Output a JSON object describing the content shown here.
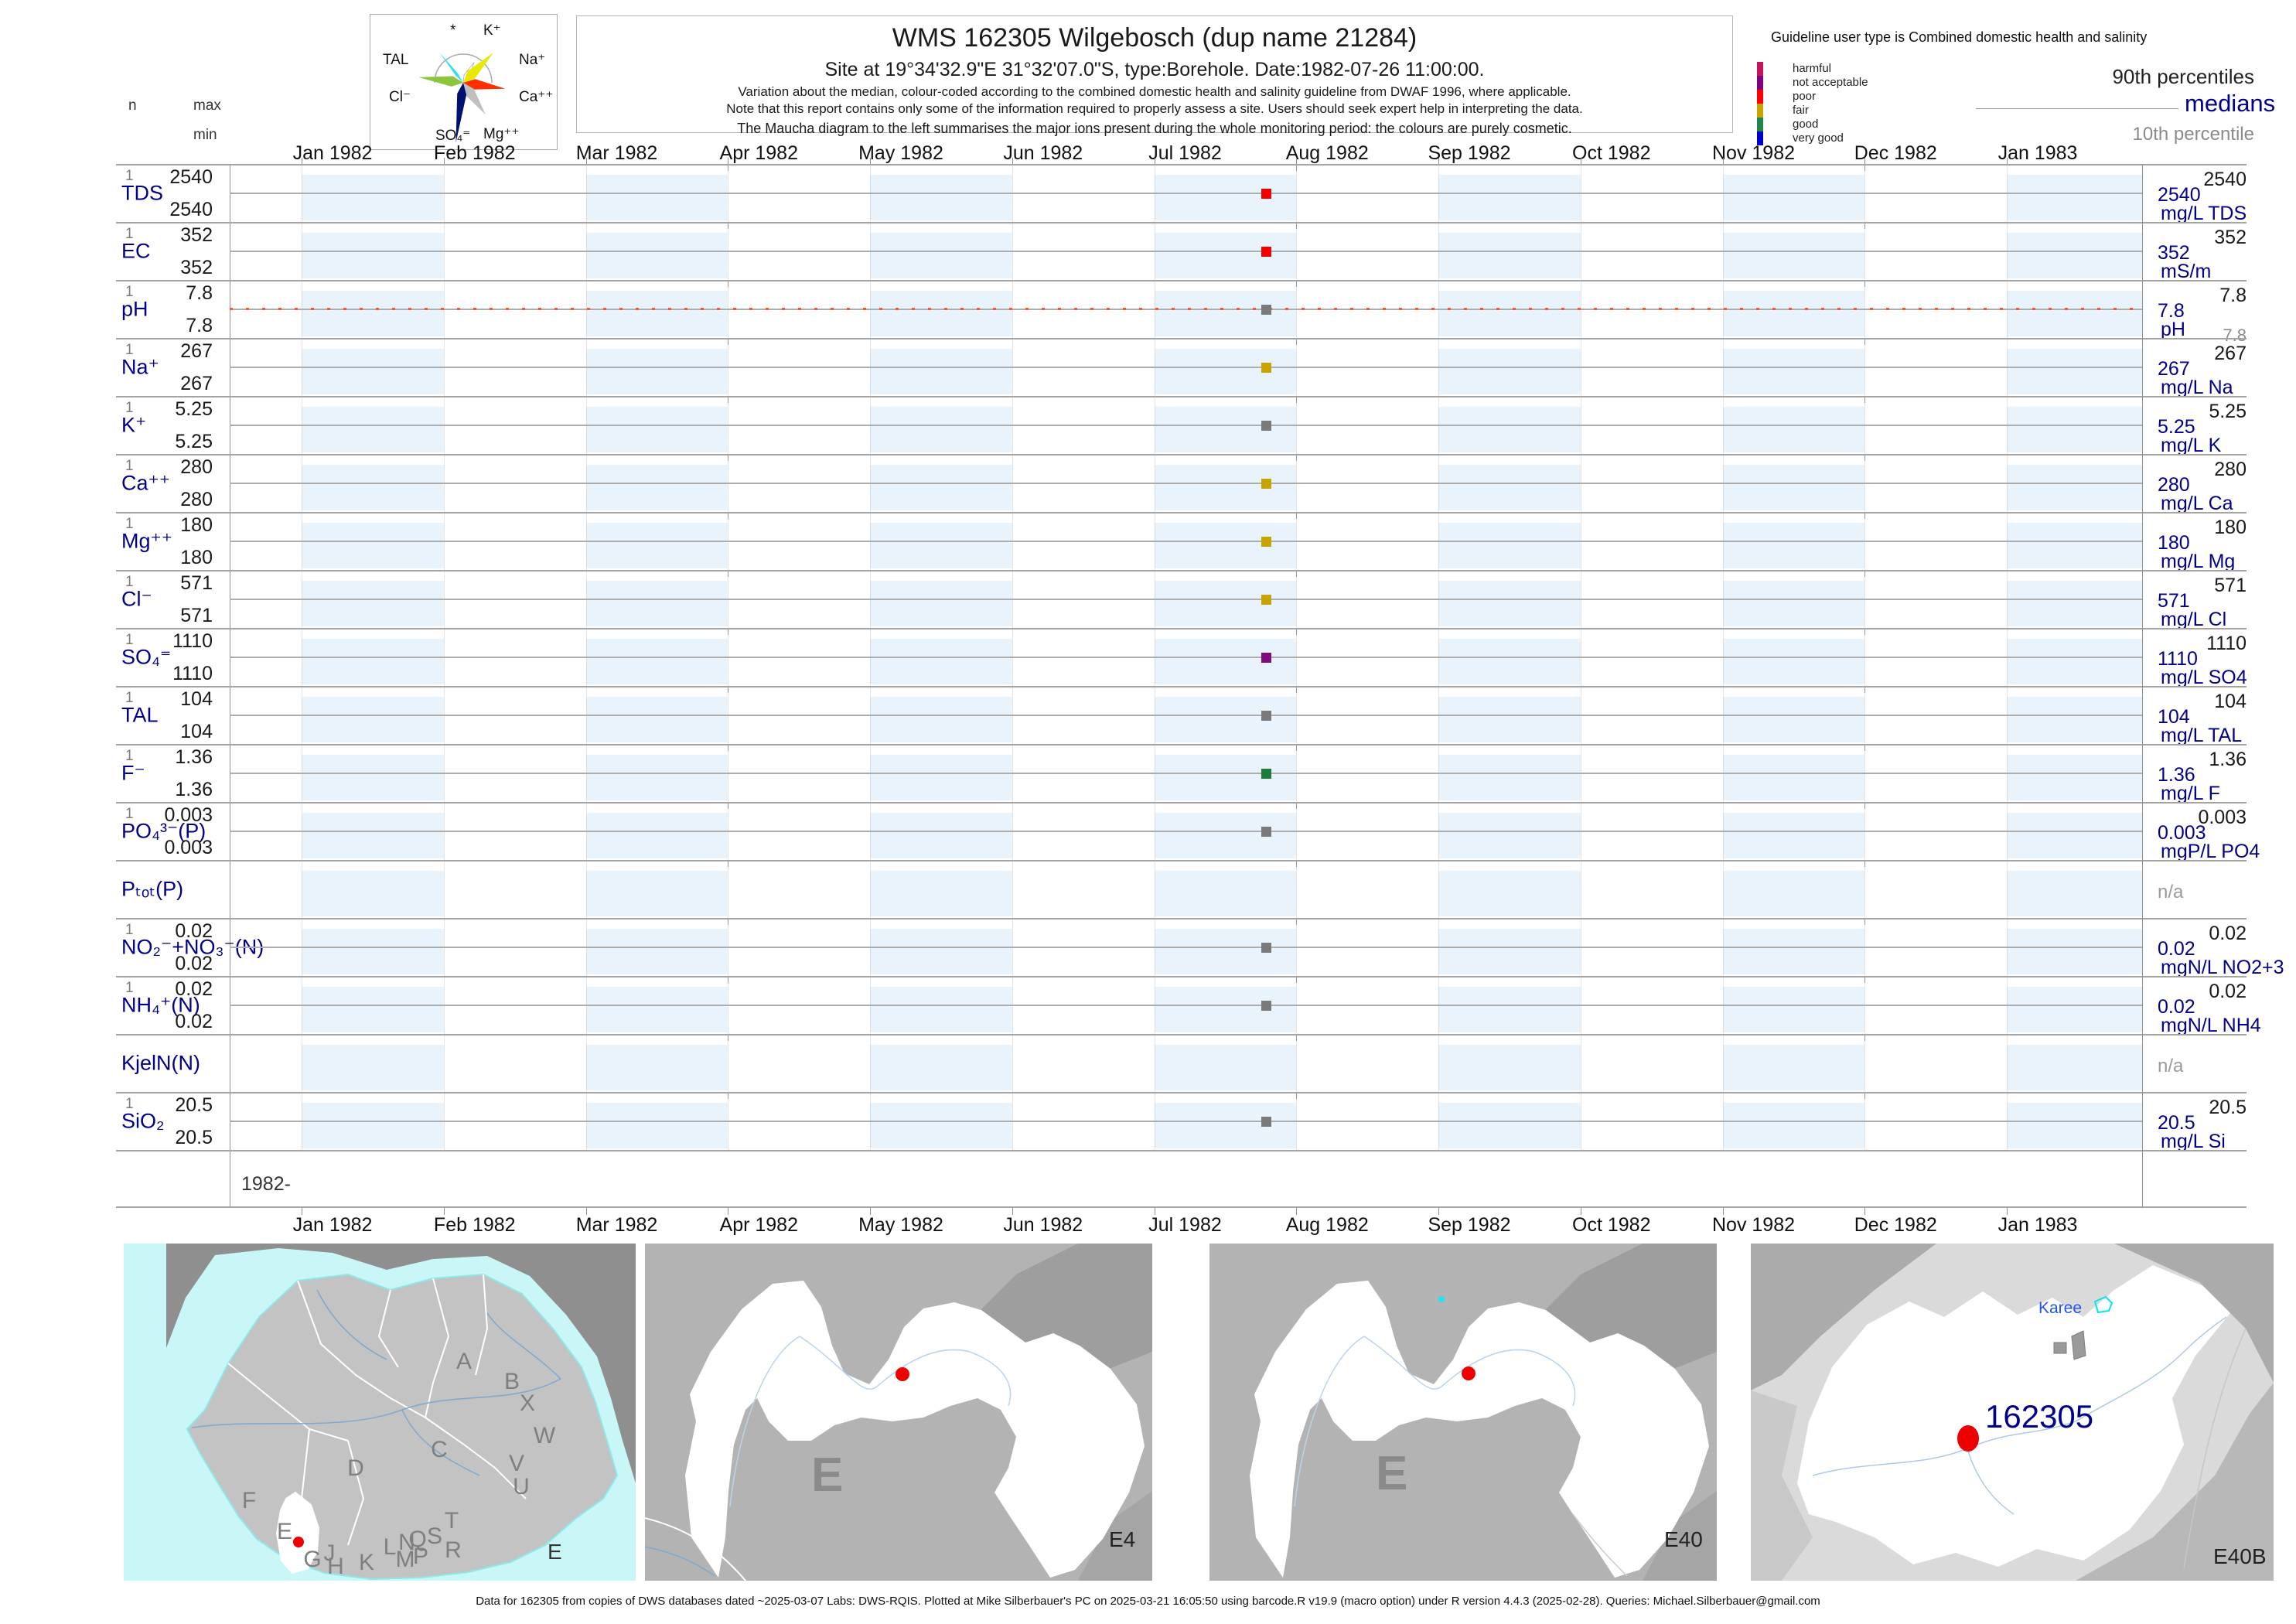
{
  "header": {
    "stats_legend": {
      "n": "n",
      "max": "max",
      "min": "min"
    },
    "maucha_labels": {
      "star": "*",
      "k": "K⁺",
      "na": "Na⁺",
      "ca": "Ca⁺⁺",
      "mg": "Mg⁺⁺",
      "so4": "SO₄⁼",
      "cl": "Cl⁻",
      "tal": "TAL"
    },
    "title": "WMS 162305  Wilgebosch (dup name 21284)",
    "subtitle": "Site at 19°34'32.9\"E 31°32'07.0\"S, type:Borehole. Date:1982-07-26 11:00:00.",
    "note1": "Variation about the median,  colour-coded according to the combined domestic health and salinity guideline from DWAF 1996, where applicable.",
    "note2": "Note that this report contains only some of the information required to properly assess a site. Users should seek expert help in interpreting the data.",
    "note3": "The Maucha diagram to the left summarises the major ions present during the whole monitoring period: the colours are purely cosmetic.",
    "guideline": {
      "title": "Guideline user type is Combined domestic health and salinity",
      "classes": [
        {
          "label": "harmful",
          "color": "#C4145A"
        },
        {
          "label": "not acceptable",
          "color": "#800080"
        },
        {
          "label": "poor",
          "color": "#FF0000"
        },
        {
          "label": "fair",
          "color": "#C8A400"
        },
        {
          "label": "good",
          "color": "#1E8449"
        },
        {
          "label": "very good",
          "color": "#0000CC"
        }
      ],
      "p90_label": "90th percentiles",
      "median_label": "medians",
      "p10_label": "10th percentile"
    }
  },
  "axis": {
    "months": [
      "Jan 1982",
      "Feb 1982",
      "Mar 1982",
      "Apr 1982",
      "May 1982",
      "Jun 1982",
      "Jul 1982",
      "Aug 1982",
      "Sep 1982",
      "Oct 1982",
      "Nov 1982",
      "Dec 1982",
      "Jan 1983"
    ],
    "year_row_label": "1982-"
  },
  "rows": [
    {
      "param": "TDS",
      "n": "1",
      "max": "2540",
      "min": "2540",
      "p90": "2540",
      "median": "2540",
      "unit": "mg/L TDS",
      "point_color": "#F00000"
    },
    {
      "param": "EC",
      "n": "1",
      "max": "352",
      "min": "352",
      "p90": "352",
      "median": "352",
      "unit": "mS/m",
      "point_color": "#F00000"
    },
    {
      "param": "pH",
      "n": "1",
      "max": "7.8",
      "min": "7.8",
      "p90": "7.8",
      "median": "7.8",
      "unit": "pH",
      "p10": "7.8",
      "point_color": "#7A7A7A",
      "guideline_line": true
    },
    {
      "param": "Na⁺",
      "n": "1",
      "max": "267",
      "min": "267",
      "p90": "267",
      "median": "267",
      "unit": "mg/L Na",
      "point_color": "#C8A400"
    },
    {
      "param": "K⁺",
      "n": "1",
      "max": "5.25",
      "min": "5.25",
      "p90": "5.25",
      "median": "5.25",
      "unit": "mg/L K",
      "point_color": "#7A7A7A"
    },
    {
      "param": "Ca⁺⁺",
      "n": "1",
      "max": "280",
      "min": "280",
      "p90": "280",
      "median": "280",
      "unit": "mg/L Ca",
      "point_color": "#C8A400"
    },
    {
      "param": "Mg⁺⁺",
      "n": "1",
      "max": "180",
      "min": "180",
      "p90": "180",
      "median": "180",
      "unit": "mg/L Mg",
      "point_color": "#C8A400"
    },
    {
      "param": "Cl⁻",
      "n": "1",
      "max": "571",
      "min": "571",
      "p90": "571",
      "median": "571",
      "unit": "mg/L Cl",
      "point_color": "#C8A400"
    },
    {
      "param": "SO₄⁼",
      "n": "1",
      "max": "1110",
      "min": "1110",
      "p90": "1110",
      "median": "1110",
      "unit": "mg/L SO4",
      "point_color": "#7D0D7D"
    },
    {
      "param": "TAL",
      "n": "1",
      "max": "104",
      "min": "104",
      "p90": "104",
      "median": "104",
      "unit": "mg/L TAL",
      "point_color": "#7A7A7A"
    },
    {
      "param": "F⁻",
      "n": "1",
      "max": "1.36",
      "min": "1.36",
      "p90": "1.36",
      "median": "1.36",
      "unit": "mg/L F",
      "point_color": "#1E7B3C"
    },
    {
      "param": "PO₄³⁻(P)",
      "n": "1",
      "max": "0.003",
      "min": "0.003",
      "p90": "0.003",
      "median": "0.003",
      "unit": "mgP/L PO4",
      "point_color": "#7A7A7A"
    },
    {
      "param": "Pₜₒₜ(P)",
      "na": "n/a"
    },
    {
      "param": "NO₂⁻+NO₃⁻(N)",
      "n": "1",
      "max": "0.02",
      "min": "0.02",
      "p90": "0.02",
      "median": "0.02",
      "unit": "mgN/L NO2+3",
      "point_color": "#7A7A7A"
    },
    {
      "param": "NH₄⁺(N)",
      "n": "1",
      "max": "0.02",
      "min": "0.02",
      "p90": "0.02",
      "median": "0.02",
      "unit": "mgN/L NH4",
      "point_color": "#7A7A7A"
    },
    {
      "param": "KjelN(N)",
      "na": "n/a"
    },
    {
      "param": "SiO₂",
      "n": "1",
      "max": "20.5",
      "min": "20.5",
      "p90": "20.5",
      "median": "20.5",
      "unit": "mg/L Si",
      "point_color": "#7A7A7A"
    }
  ],
  "maps": {
    "overview": {
      "corner_label": "E",
      "region_letters": [
        "A",
        "B",
        "X",
        "C",
        "W",
        "V",
        "U",
        "D",
        "F",
        "E",
        "T",
        "S",
        "Q",
        "R",
        "N",
        "L",
        "P",
        "M",
        "J",
        "K",
        "G",
        "H"
      ]
    },
    "e4": {
      "center_letter": "E",
      "corner_label": "E4"
    },
    "e40": {
      "center_letter": "E",
      "corner_label": "E40"
    },
    "e40b": {
      "site_label": "162305",
      "place_label": "Karee",
      "corner_label": "E40B"
    }
  },
  "footer": "Data for 162305 from copies of DWS databases dated ~2025-03-07 Labs: DWS-RQIS. Plotted at Mike Silberbauer's PC on 2025-03-21 16:05:50 using barcode.R v19.9 (macro option) under R version 4.4.3 (2025-02-28). Queries: Michael.Silberbauer@gmail.com",
  "chart_data": {
    "type": "scatter",
    "title": "WMS 162305 Wilgebosch (dup name 21284)",
    "site": "19°34'32.9\"E 31°32'07.0\"S, type Borehole",
    "sample_datetime": "1982-07-26 11:00:00",
    "x_axis": {
      "label": "month",
      "range": [
        "Dec 1981",
        "Feb 1983"
      ],
      "ticks": [
        "Jan 1982",
        "Feb 1982",
        "Mar 1982",
        "Apr 1982",
        "May 1982",
        "Jun 1982",
        "Jul 1982",
        "Aug 1982",
        "Sep 1982",
        "Oct 1982",
        "Nov 1982",
        "Dec 1982",
        "Jan 1983"
      ]
    },
    "legend_position": "top-right",
    "grid": "alternate month shading",
    "series": [
      {
        "name": "TDS",
        "unit": "mg/L TDS",
        "n": 1,
        "min": 2540,
        "max": 2540,
        "median": 2540,
        "p90": 2540,
        "rating": "poor",
        "values": [
          {
            "x": "1982-07-26",
            "y": 2540
          }
        ]
      },
      {
        "name": "EC",
        "unit": "mS/m",
        "n": 1,
        "min": 352,
        "max": 352,
        "median": 352,
        "p90": 352,
        "rating": "poor",
        "values": [
          {
            "x": "1982-07-26",
            "y": 352
          }
        ]
      },
      {
        "name": "pH",
        "unit": "pH",
        "n": 1,
        "min": 7.8,
        "max": 7.8,
        "median": 7.8,
        "p90": 7.8,
        "p10": 7.8,
        "rating": "none",
        "values": [
          {
            "x": "1982-07-26",
            "y": 7.8
          }
        ]
      },
      {
        "name": "Na",
        "unit": "mg/L Na",
        "n": 1,
        "min": 267,
        "max": 267,
        "median": 267,
        "p90": 267,
        "rating": "fair",
        "values": [
          {
            "x": "1982-07-26",
            "y": 267
          }
        ]
      },
      {
        "name": "K",
        "unit": "mg/L K",
        "n": 1,
        "min": 5.25,
        "max": 5.25,
        "median": 5.25,
        "p90": 5.25,
        "rating": "none",
        "values": [
          {
            "x": "1982-07-26",
            "y": 5.25
          }
        ]
      },
      {
        "name": "Ca",
        "unit": "mg/L Ca",
        "n": 1,
        "min": 280,
        "max": 280,
        "median": 280,
        "p90": 280,
        "rating": "fair",
        "values": [
          {
            "x": "1982-07-26",
            "y": 280
          }
        ]
      },
      {
        "name": "Mg",
        "unit": "mg/L Mg",
        "n": 1,
        "min": 180,
        "max": 180,
        "median": 180,
        "p90": 180,
        "rating": "fair",
        "values": [
          {
            "x": "1982-07-26",
            "y": 180
          }
        ]
      },
      {
        "name": "Cl",
        "unit": "mg/L Cl",
        "n": 1,
        "min": 571,
        "max": 571,
        "median": 571,
        "p90": 571,
        "rating": "fair",
        "values": [
          {
            "x": "1982-07-26",
            "y": 571
          }
        ]
      },
      {
        "name": "SO4",
        "unit": "mg/L SO4",
        "n": 1,
        "min": 1110,
        "max": 1110,
        "median": 1110,
        "p90": 1110,
        "rating": "not acceptable",
        "values": [
          {
            "x": "1982-07-26",
            "y": 1110
          }
        ]
      },
      {
        "name": "TAL",
        "unit": "mg/L TAL",
        "n": 1,
        "min": 104,
        "max": 104,
        "median": 104,
        "p90": 104,
        "rating": "none",
        "values": [
          {
            "x": "1982-07-26",
            "y": 104
          }
        ]
      },
      {
        "name": "F",
        "unit": "mg/L F",
        "n": 1,
        "min": 1.36,
        "max": 1.36,
        "median": 1.36,
        "p90": 1.36,
        "rating": "good",
        "values": [
          {
            "x": "1982-07-26",
            "y": 1.36
          }
        ]
      },
      {
        "name": "PO4-P",
        "unit": "mgP/L PO4",
        "n": 1,
        "min": 0.003,
        "max": 0.003,
        "median": 0.003,
        "p90": 0.003,
        "rating": "none",
        "values": [
          {
            "x": "1982-07-26",
            "y": 0.003
          }
        ]
      },
      {
        "name": "Ptot-P",
        "unit": "",
        "n": 0,
        "values": [],
        "rating": "n/a"
      },
      {
        "name": "NO2+NO3-N",
        "unit": "mgN/L NO2+3",
        "n": 1,
        "min": 0.02,
        "max": 0.02,
        "median": 0.02,
        "p90": 0.02,
        "rating": "none",
        "values": [
          {
            "x": "1982-07-26",
            "y": 0.02
          }
        ]
      },
      {
        "name": "NH4-N",
        "unit": "mgN/L NH4",
        "n": 1,
        "min": 0.02,
        "max": 0.02,
        "median": 0.02,
        "p90": 0.02,
        "rating": "none",
        "values": [
          {
            "x": "1982-07-26",
            "y": 0.02
          }
        ]
      },
      {
        "name": "KjelN",
        "unit": "",
        "n": 0,
        "values": [],
        "rating": "n/a"
      },
      {
        "name": "SiO2",
        "unit": "mg/L Si",
        "n": 1,
        "min": 20.5,
        "max": 20.5,
        "median": 20.5,
        "p90": 20.5,
        "rating": "none",
        "values": [
          {
            "x": "1982-07-26",
            "y": 20.5
          }
        ]
      }
    ]
  }
}
